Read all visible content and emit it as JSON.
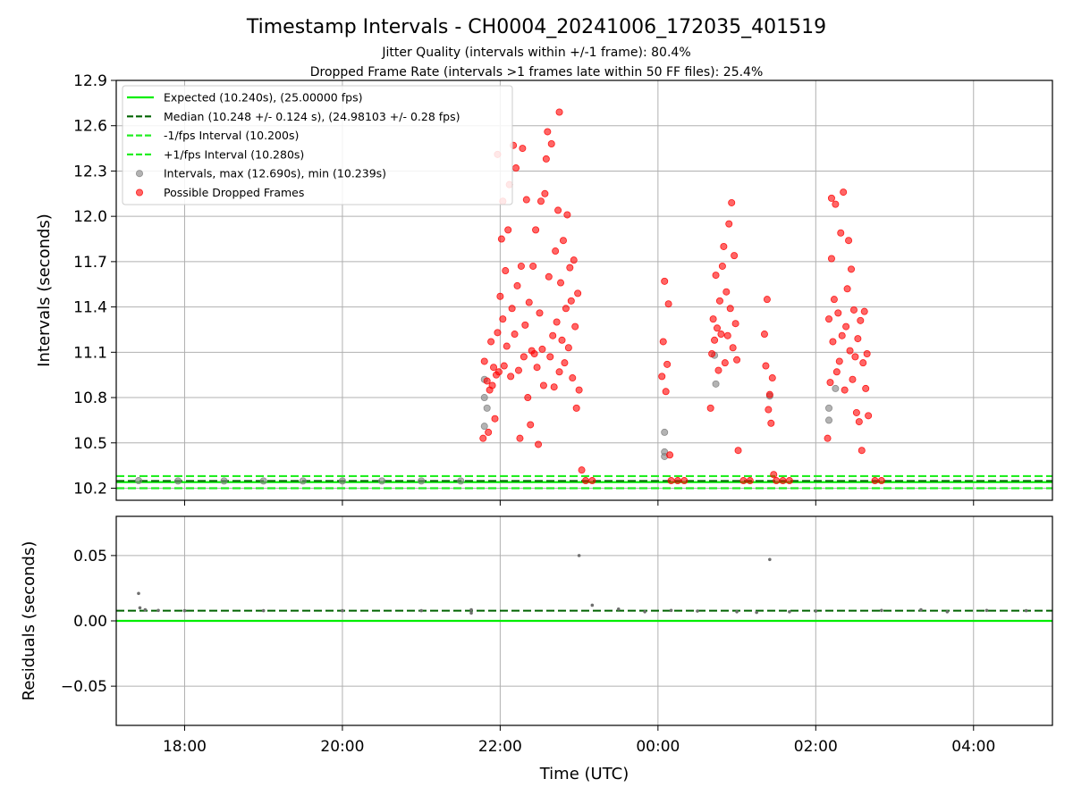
{
  "chart_data": [
    {
      "type": "scatter",
      "title": "Timestamp Intervals - CH0004_20241006_172035_401519",
      "subtitle_jitter": "Jitter Quality (intervals within +/-1 frame): 80.4%",
      "subtitle_dropped": "Dropped Frame Rate (intervals >1 frames late within 50 FF files): 25.4%",
      "ylabel": "Intervals (seconds)",
      "ylim": [
        10.12,
        12.9
      ],
      "yticks": [
        "10.2",
        "10.5",
        "10.8",
        "11.1",
        "11.4",
        "11.7",
        "12.0",
        "12.3",
        "12.6",
        "12.9"
      ],
      "grid": true,
      "legend_position": "upper-left",
      "legend": [
        {
          "label": "Expected (10.240s), (25.00000 fps)",
          "style": "solid",
          "color": "#00ee00"
        },
        {
          "label": "Median (10.248 +/- 0.124 s), (24.98103 +/- 0.28 fps)",
          "style": "dashed",
          "color": "#006400"
        },
        {
          "label": "-1/fps Interval (10.200s)",
          "style": "dashed",
          "color": "#22ee22"
        },
        {
          "label": "+1/fps Interval (10.280s)",
          "style": "dashed",
          "color": "#22ee22"
        },
        {
          "label": "Intervals, max (12.690s), min (10.239s)",
          "style": "dot",
          "color": "#808080"
        },
        {
          "label": "Possible Dropped Frames",
          "style": "dot",
          "color": "#ff0000"
        }
      ],
      "reference_lines": {
        "expected": 10.24,
        "median": 10.248,
        "minus_1fps": 10.2,
        "plus_1fps": 10.28
      },
      "series": [
        {
          "name": "Intervals",
          "color": "#808080",
          "points": [
            {
              "x": "17:25",
              "y": 10.25
            },
            {
              "x": "17:55",
              "y": 10.248
            },
            {
              "x": "18:30",
              "y": 10.248
            },
            {
              "x": "19:00",
              "y": 10.248
            },
            {
              "x": "19:30",
              "y": 10.248
            },
            {
              "x": "20:00",
              "y": 10.248
            },
            {
              "x": "20:30",
              "y": 10.248
            },
            {
              "x": "21:00",
              "y": 10.248
            },
            {
              "x": "21:30",
              "y": 10.248
            },
            {
              "x": "21:48",
              "y": 10.92
            },
            {
              "x": "21:48",
              "y": 10.8
            },
            {
              "x": "21:48",
              "y": 10.61
            },
            {
              "x": "21:50",
              "y": 10.73
            },
            {
              "x": "00:05",
              "y": 10.41
            },
            {
              "x": "00:05",
              "y": 10.44
            },
            {
              "x": "00:05",
              "y": 10.57
            },
            {
              "x": "00:43",
              "y": 11.08
            },
            {
              "x": "00:44",
              "y": 10.89
            },
            {
              "x": "01:25",
              "y": 10.81
            },
            {
              "x": "02:10",
              "y": 10.65
            },
            {
              "x": "02:10",
              "y": 10.73
            },
            {
              "x": "02:15",
              "y": 10.86
            }
          ]
        },
        {
          "name": "Possible Dropped Frames",
          "color": "#ff0000",
          "points": [
            {
              "x": "21:47",
              "y": 10.53
            },
            {
              "x": "21:48",
              "y": 11.04
            },
            {
              "x": "21:50",
              "y": 10.91
            },
            {
              "x": "21:51",
              "y": 10.57
            },
            {
              "x": "21:52",
              "y": 10.85
            },
            {
              "x": "21:53",
              "y": 11.17
            },
            {
              "x": "21:54",
              "y": 10.88
            },
            {
              "x": "21:55",
              "y": 11.0
            },
            {
              "x": "21:56",
              "y": 10.66
            },
            {
              "x": "21:57",
              "y": 10.95
            },
            {
              "x": "21:58",
              "y": 11.23
            },
            {
              "x": "21:58",
              "y": 12.41
            },
            {
              "x": "21:59",
              "y": 10.97
            },
            {
              "x": "22:00",
              "y": 11.47
            },
            {
              "x": "22:01",
              "y": 11.85
            },
            {
              "x": "22:02",
              "y": 11.32
            },
            {
              "x": "22:02",
              "y": 12.1
            },
            {
              "x": "22:03",
              "y": 11.01
            },
            {
              "x": "22:04",
              "y": 11.64
            },
            {
              "x": "22:05",
              "y": 11.14
            },
            {
              "x": "22:06",
              "y": 11.91
            },
            {
              "x": "22:07",
              "y": 12.21
            },
            {
              "x": "22:08",
              "y": 10.94
            },
            {
              "x": "22:09",
              "y": 11.39
            },
            {
              "x": "22:10",
              "y": 12.47
            },
            {
              "x": "22:11",
              "y": 11.22
            },
            {
              "x": "22:12",
              "y": 12.32
            },
            {
              "x": "22:13",
              "y": 11.54
            },
            {
              "x": "22:14",
              "y": 10.98
            },
            {
              "x": "22:15",
              "y": 10.53
            },
            {
              "x": "22:16",
              "y": 11.67
            },
            {
              "x": "22:17",
              "y": 12.45
            },
            {
              "x": "22:18",
              "y": 11.07
            },
            {
              "x": "22:19",
              "y": 11.28
            },
            {
              "x": "22:20",
              "y": 12.11
            },
            {
              "x": "22:21",
              "y": 10.8
            },
            {
              "x": "22:22",
              "y": 11.43
            },
            {
              "x": "22:23",
              "y": 10.62
            },
            {
              "x": "22:24",
              "y": 11.11
            },
            {
              "x": "22:25",
              "y": 11.67
            },
            {
              "x": "22:26",
              "y": 11.09
            },
            {
              "x": "22:27",
              "y": 11.91
            },
            {
              "x": "22:28",
              "y": 11.0
            },
            {
              "x": "22:29",
              "y": 10.49
            },
            {
              "x": "22:30",
              "y": 11.36
            },
            {
              "x": "22:31",
              "y": 12.1
            },
            {
              "x": "22:32",
              "y": 11.12
            },
            {
              "x": "22:33",
              "y": 10.88
            },
            {
              "x": "22:34",
              "y": 12.15
            },
            {
              "x": "22:35",
              "y": 12.38
            },
            {
              "x": "22:36",
              "y": 12.56
            },
            {
              "x": "22:37",
              "y": 11.6
            },
            {
              "x": "22:38",
              "y": 11.07
            },
            {
              "x": "22:39",
              "y": 12.48
            },
            {
              "x": "22:40",
              "y": 11.21
            },
            {
              "x": "22:41",
              "y": 10.87
            },
            {
              "x": "22:42",
              "y": 11.77
            },
            {
              "x": "22:43",
              "y": 11.3
            },
            {
              "x": "22:44",
              "y": 12.04
            },
            {
              "x": "22:45",
              "y": 10.97
            },
            {
              "x": "22:45",
              "y": 12.69
            },
            {
              "x": "22:46",
              "y": 11.56
            },
            {
              "x": "22:47",
              "y": 11.18
            },
            {
              "x": "22:48",
              "y": 11.84
            },
            {
              "x": "22:49",
              "y": 11.03
            },
            {
              "x": "22:50",
              "y": 11.39
            },
            {
              "x": "22:51",
              "y": 12.01
            },
            {
              "x": "22:52",
              "y": 11.13
            },
            {
              "x": "22:53",
              "y": 11.66
            },
            {
              "x": "22:54",
              "y": 11.44
            },
            {
              "x": "22:55",
              "y": 10.93
            },
            {
              "x": "22:56",
              "y": 11.71
            },
            {
              "x": "22:57",
              "y": 11.27
            },
            {
              "x": "22:58",
              "y": 10.73
            },
            {
              "x": "22:59",
              "y": 11.49
            },
            {
              "x": "23:00",
              "y": 10.85
            },
            {
              "x": "23:02",
              "y": 10.32
            },
            {
              "x": "23:05",
              "y": 10.25
            },
            {
              "x": "23:10",
              "y": 10.25
            },
            {
              "x": "00:03",
              "y": 10.94
            },
            {
              "x": "00:04",
              "y": 11.17
            },
            {
              "x": "00:05",
              "y": 11.57
            },
            {
              "x": "00:06",
              "y": 10.84
            },
            {
              "x": "00:07",
              "y": 11.02
            },
            {
              "x": "00:08",
              "y": 11.42
            },
            {
              "x": "00:09",
              "y": 10.42
            },
            {
              "x": "00:10",
              "y": 10.25
            },
            {
              "x": "00:15",
              "y": 10.25
            },
            {
              "x": "00:20",
              "y": 10.25
            },
            {
              "x": "00:40",
              "y": 10.73
            },
            {
              "x": "00:41",
              "y": 11.09
            },
            {
              "x": "00:42",
              "y": 11.32
            },
            {
              "x": "00:43",
              "y": 11.18
            },
            {
              "x": "00:44",
              "y": 11.61
            },
            {
              "x": "00:45",
              "y": 11.26
            },
            {
              "x": "00:46",
              "y": 10.98
            },
            {
              "x": "00:47",
              "y": 11.44
            },
            {
              "x": "00:48",
              "y": 11.22
            },
            {
              "x": "00:49",
              "y": 11.67
            },
            {
              "x": "00:50",
              "y": 11.8
            },
            {
              "x": "00:51",
              "y": 11.03
            },
            {
              "x": "00:52",
              "y": 11.5
            },
            {
              "x": "00:53",
              "y": 11.21
            },
            {
              "x": "00:54",
              "y": 11.95
            },
            {
              "x": "00:55",
              "y": 11.39
            },
            {
              "x": "00:56",
              "y": 12.09
            },
            {
              "x": "00:57",
              "y": 11.13
            },
            {
              "x": "00:58",
              "y": 11.74
            },
            {
              "x": "00:59",
              "y": 11.29
            },
            {
              "x": "01:00",
              "y": 11.05
            },
            {
              "x": "01:01",
              "y": 10.45
            },
            {
              "x": "01:05",
              "y": 10.25
            },
            {
              "x": "01:10",
              "y": 10.25
            },
            {
              "x": "01:21",
              "y": 11.22
            },
            {
              "x": "01:22",
              "y": 11.01
            },
            {
              "x": "01:23",
              "y": 11.45
            },
            {
              "x": "01:24",
              "y": 10.72
            },
            {
              "x": "01:25",
              "y": 10.82
            },
            {
              "x": "01:26",
              "y": 10.63
            },
            {
              "x": "01:27",
              "y": 10.93
            },
            {
              "x": "01:28",
              "y": 10.29
            },
            {
              "x": "01:30",
              "y": 10.25
            },
            {
              "x": "01:35",
              "y": 10.25
            },
            {
              "x": "01:40",
              "y": 10.25
            },
            {
              "x": "02:09",
              "y": 10.53
            },
            {
              "x": "02:10",
              "y": 11.32
            },
            {
              "x": "02:11",
              "y": 10.9
            },
            {
              "x": "02:12",
              "y": 11.72
            },
            {
              "x": "02:12",
              "y": 12.12
            },
            {
              "x": "02:13",
              "y": 11.17
            },
            {
              "x": "02:14",
              "y": 11.45
            },
            {
              "x": "02:15",
              "y": 12.08
            },
            {
              "x": "02:16",
              "y": 10.97
            },
            {
              "x": "02:17",
              "y": 11.36
            },
            {
              "x": "02:18",
              "y": 11.04
            },
            {
              "x": "02:19",
              "y": 11.89
            },
            {
              "x": "02:20",
              "y": 11.21
            },
            {
              "x": "02:21",
              "y": 12.16
            },
            {
              "x": "02:22",
              "y": 10.85
            },
            {
              "x": "02:23",
              "y": 11.27
            },
            {
              "x": "02:24",
              "y": 11.52
            },
            {
              "x": "02:25",
              "y": 11.84
            },
            {
              "x": "02:26",
              "y": 11.11
            },
            {
              "x": "02:27",
              "y": 11.65
            },
            {
              "x": "02:28",
              "y": 10.92
            },
            {
              "x": "02:29",
              "y": 11.38
            },
            {
              "x": "02:30",
              "y": 11.07
            },
            {
              "x": "02:31",
              "y": 10.7
            },
            {
              "x": "02:32",
              "y": 11.19
            },
            {
              "x": "02:33",
              "y": 10.64
            },
            {
              "x": "02:34",
              "y": 11.31
            },
            {
              "x": "02:35",
              "y": 10.45
            },
            {
              "x": "02:36",
              "y": 11.03
            },
            {
              "x": "02:37",
              "y": 11.37
            },
            {
              "x": "02:38",
              "y": 10.86
            },
            {
              "x": "02:39",
              "y": 11.09
            },
            {
              "x": "02:40",
              "y": 10.68
            },
            {
              "x": "02:45",
              "y": 10.25
            },
            {
              "x": "02:50",
              "y": 10.25
            }
          ]
        }
      ]
    },
    {
      "type": "scatter",
      "ylabel": "Residuals (seconds)",
      "xlabel": "Time (UTC)",
      "ylim": [
        -0.08,
        0.08
      ],
      "yticks": [
        "−0.05",
        "0.00",
        "0.05"
      ],
      "xticks": [
        "18:00",
        "20:00",
        "22:00",
        "00:00",
        "02:00",
        "04:00"
      ],
      "grid": true,
      "reference_lines": {
        "zero": 0.0,
        "median": 0.0078
      },
      "series": [
        {
          "name": "Residuals",
          "color": "#6e6e6e",
          "points": [
            {
              "x": "17:25",
              "y": 0.021
            },
            {
              "x": "17:26",
              "y": 0.01
            },
            {
              "x": "17:30",
              "y": 0.0085
            },
            {
              "x": "17:40",
              "y": 0.008
            },
            {
              "x": "18:00",
              "y": 0.0078
            },
            {
              "x": "19:00",
              "y": 0.0078
            },
            {
              "x": "20:00",
              "y": 0.0078
            },
            {
              "x": "21:00",
              "y": 0.0078
            },
            {
              "x": "21:38",
              "y": 0.0085
            },
            {
              "x": "21:38",
              "y": 0.006
            },
            {
              "x": "23:00",
              "y": 0.05
            },
            {
              "x": "23:10",
              "y": 0.012
            },
            {
              "x": "23:30",
              "y": 0.009
            },
            {
              "x": "23:50",
              "y": 0.007
            },
            {
              "x": "00:10",
              "y": 0.008
            },
            {
              "x": "00:30",
              "y": 0.0075
            },
            {
              "x": "01:00",
              "y": 0.007
            },
            {
              "x": "01:15",
              "y": 0.0065
            },
            {
              "x": "01:25",
              "y": 0.047
            },
            {
              "x": "01:40",
              "y": 0.007
            },
            {
              "x": "02:00",
              "y": 0.0075
            },
            {
              "x": "02:50",
              "y": 0.008
            },
            {
              "x": "03:20",
              "y": 0.0085
            },
            {
              "x": "03:40",
              "y": 0.007
            },
            {
              "x": "04:10",
              "y": 0.008
            },
            {
              "x": "04:40",
              "y": 0.0078
            }
          ]
        }
      ]
    }
  ]
}
